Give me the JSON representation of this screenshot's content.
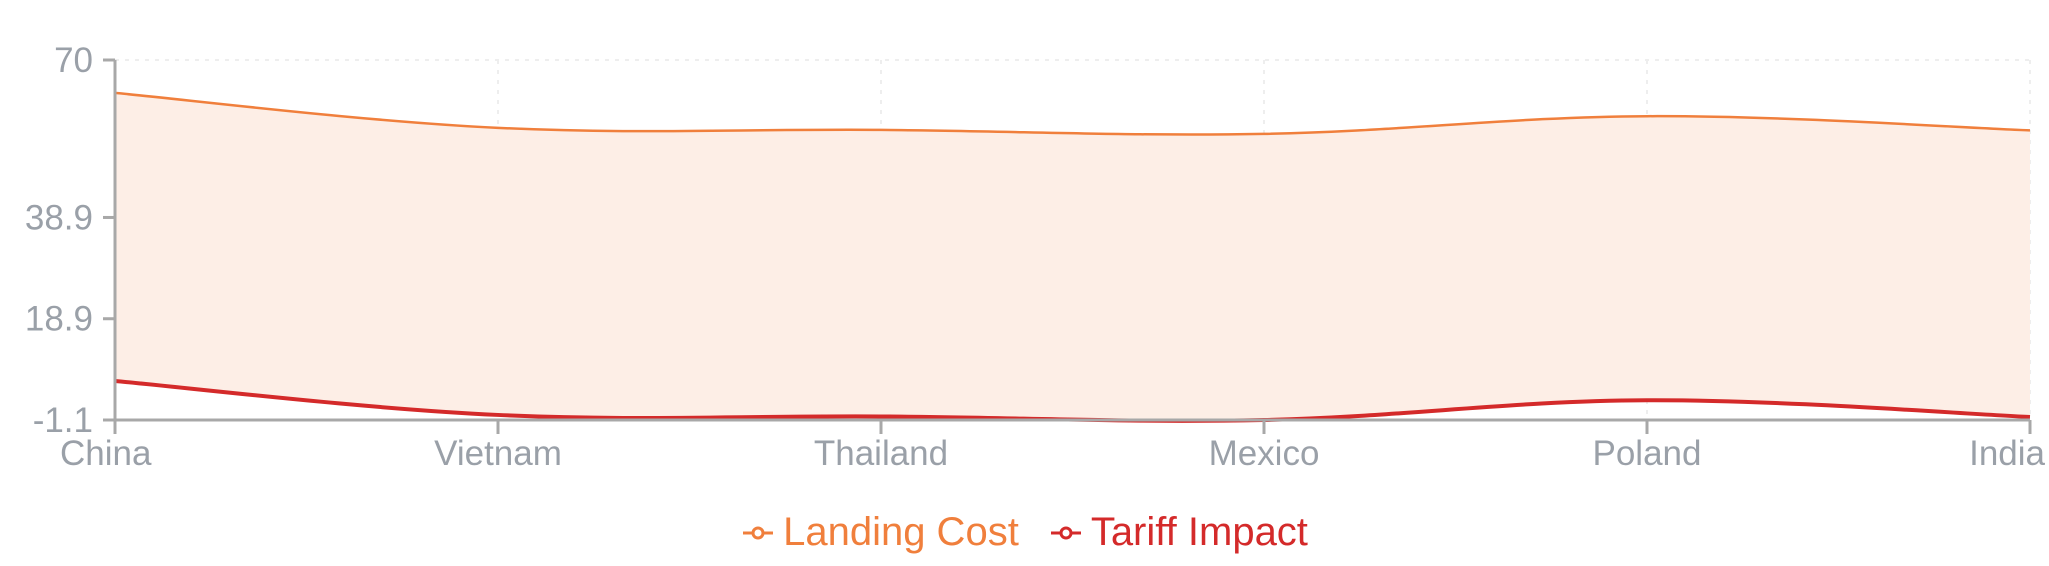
{
  "chart_data": {
    "type": "area",
    "categories": [
      "China",
      "Vietnam",
      "Thailand",
      "Mexico",
      "Poland",
      "India"
    ],
    "series": [
      {
        "name": "Landing Cost",
        "color": "#f07f3c",
        "fill": "#fdeee6",
        "values": [
          63.5,
          56.6,
          56.2,
          55.4,
          58.9,
          56.1
        ]
      },
      {
        "name": "Tariff Impact",
        "color": "#d42a2a",
        "values": [
          6.6,
          -0.1,
          -0.4,
          -1.1,
          2.8,
          -0.5
        ]
      }
    ],
    "y_ticks": [
      "70",
      "38.9",
      "18.9",
      "-1.1"
    ],
    "y_tick_values": [
      70,
      38.9,
      18.9,
      -1.1
    ],
    "ylim": [
      -1.1,
      70
    ],
    "grid": true,
    "legend_position": "bottom"
  }
}
